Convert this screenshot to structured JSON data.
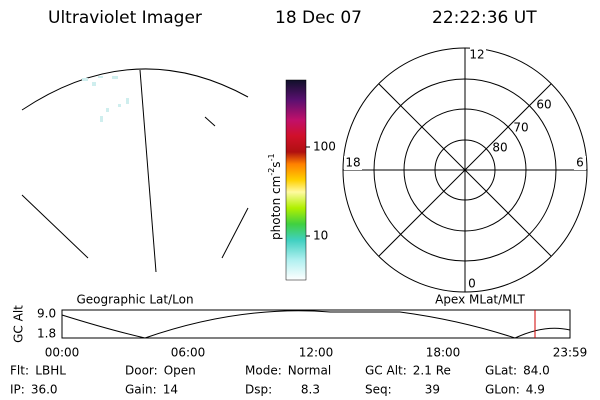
{
  "header": {
    "instrument": "Ultraviolet Imager",
    "date": "18 Dec 07",
    "time": "22:22:36 UT"
  },
  "colorbar": {
    "label": "photon cm",
    "exp1": "-2",
    "mid": "s",
    "exp2": "-1",
    "ticks": [
      "100",
      "10"
    ]
  },
  "polar": {
    "mlt_labels": [
      "12",
      "6",
      "0",
      "18"
    ],
    "lat_labels": [
      "60",
      "70",
      "80"
    ]
  },
  "track": {
    "left_title": "Geographic Lat/Lon",
    "right_title": "Apex MLat/MLT",
    "axis_label": "GC Alt",
    "y_labels": [
      "9.0",
      "1.8"
    ],
    "x_labels": [
      "00:00",
      "06:00",
      "12:00",
      "18:00",
      "23:59"
    ]
  },
  "info": {
    "rows": [
      [
        [
          "Flt:",
          "LBHL"
        ],
        [
          "Door:",
          "Open"
        ],
        [
          "Mode:",
          "Normal"
        ],
        [
          "GC Alt:",
          "2.1 Re"
        ],
        [
          "GLat:",
          "84.0"
        ]
      ],
      [
        [
          "IP:",
          "36.0"
        ],
        [
          "Gain:",
          "14"
        ],
        [
          "Dsp:",
          "8.3"
        ],
        [
          "Seq:",
          "39"
        ],
        [
          "GLon:",
          "4.9"
        ]
      ]
    ]
  }
}
